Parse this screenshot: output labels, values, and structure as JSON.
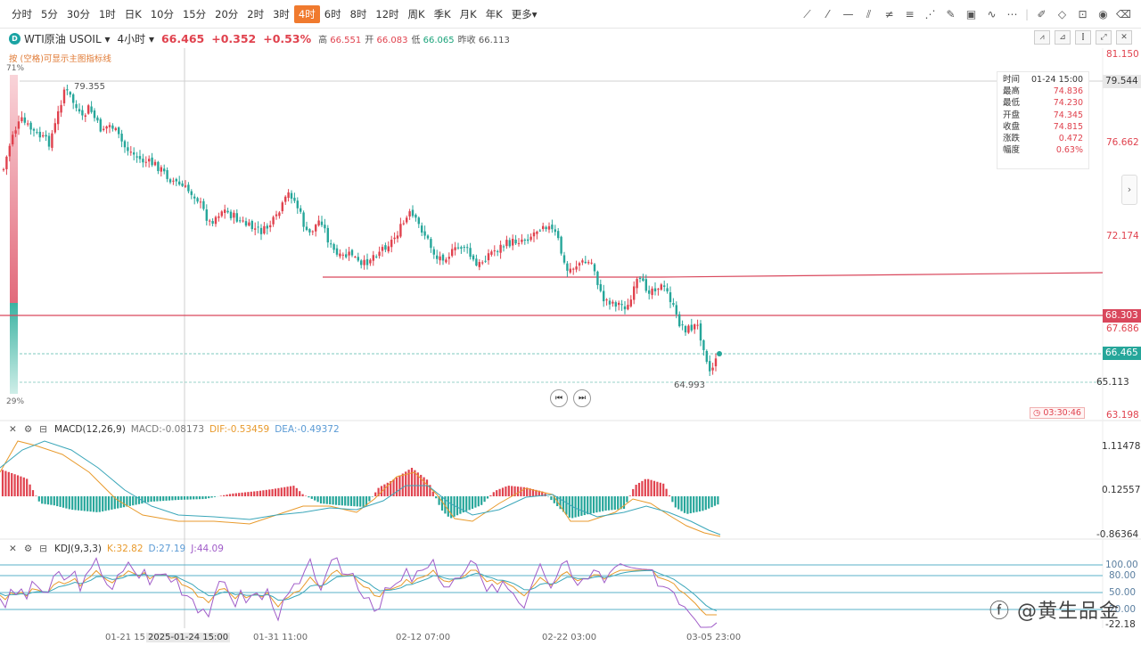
{
  "toolbar": {
    "timeframes": [
      "分时",
      "5分",
      "30分",
      "1时",
      "日K",
      "10分",
      "15分",
      "20分",
      "2时",
      "3时",
      "4时",
      "6时",
      "8时",
      "12时",
      "周K",
      "季K",
      "月K",
      "年K",
      "更多"
    ],
    "active_timeframe": "4时"
  },
  "instrument": {
    "name": "WTI原油",
    "code": "USOIL",
    "interval": "4小时",
    "price": "66.465",
    "change": "+0.352",
    "change_pct": "+0.53%",
    "high_label": "高",
    "high": "66.551",
    "open_label": "开",
    "open": "66.083",
    "low_label": "低",
    "low": "66.065",
    "prev_label": "昨收",
    "prev": "66.113"
  },
  "hint": "按 (空格)可显示主图指标线",
  "sidebar_pct": {
    "top": "71%",
    "bottom": "29%"
  },
  "tooltip": {
    "rows": [
      {
        "k": "时间",
        "v": "01-24 15:00"
      },
      {
        "k": "最高",
        "v": "74.836"
      },
      {
        "k": "最低",
        "v": "74.230"
      },
      {
        "k": "开盘",
        "v": "74.345"
      },
      {
        "k": "收盘",
        "v": "74.815"
      },
      {
        "k": "涨跌",
        "v": "0.472"
      },
      {
        "k": "幅度",
        "v": "0.63%"
      }
    ]
  },
  "price_axis": {
    "labels": [
      "81.150",
      "79.544",
      "76.662",
      "72.174",
      "67.686",
      "63.198"
    ],
    "tag_68": "68.303",
    "tag_current": "66.465",
    "tag_low": "65.113",
    "timer": "03:30:46"
  },
  "annotations": {
    "high": "79.355",
    "low": "64.993"
  },
  "macd": {
    "title": "MACD(12,26,9)",
    "macd": "MACD:-0.08173",
    "dif": "DIF:-0.53459",
    "dea": "DEA:-0.49372",
    "axis": [
      "1.11478",
      "0.12557",
      "-0.86364"
    ]
  },
  "kdj": {
    "title": "KDJ(9,3,3)",
    "k": "K:32.82",
    "d": "D:27.19",
    "j": "J:44.09",
    "axis": [
      "100.00",
      "80.00",
      "50.00",
      "20.00",
      "-22.18"
    ]
  },
  "x_axis": [
    "01-21 15:00",
    "2025-01-24 15:00",
    "01-31 11:00",
    "02-12 07:00",
    "02-22 03:00",
    "03-05 23:00"
  ],
  "watermark": "@黄生品金",
  "colors": {
    "up": "#e0424e",
    "down": "#26a69a",
    "accent": "#f07a2e"
  }
}
